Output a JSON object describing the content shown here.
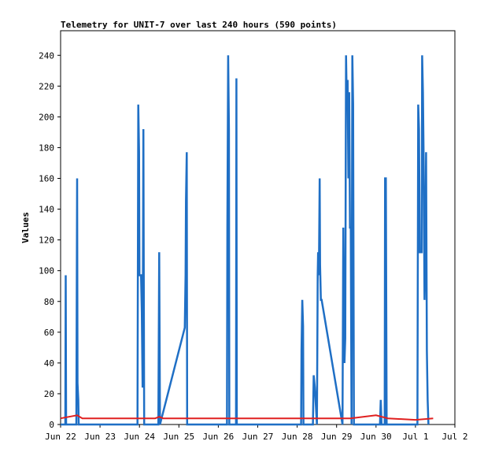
{
  "chart_data": {
    "type": "line",
    "title": "Telemetry for UNIT-7 over last 240 hours (590 points)",
    "xlabel": "",
    "ylabel": "Values",
    "x_ticks": [
      "Jun 22",
      "Jun 23",
      "Jun 24",
      "Jun 25",
      "Jun 26",
      "Jun 27",
      "Jun 28",
      "Jun 29",
      "Jun 30",
      "Jul 1",
      "Jul 2"
    ],
    "xlim": [
      0,
      10
    ],
    "y_ticks": [
      0,
      20,
      40,
      60,
      80,
      100,
      120,
      140,
      160,
      180,
      200,
      220,
      240
    ],
    "ylim": [
      0,
      256
    ],
    "grid": false,
    "series": [
      {
        "color": "#1f6fc5",
        "points": [
          [
            0.0,
            0
          ],
          [
            0.12,
            0
          ],
          [
            0.13,
            97
          ],
          [
            0.14,
            0
          ],
          [
            0.4,
            0
          ],
          [
            0.42,
            160
          ],
          [
            0.43,
            27
          ],
          [
            0.45,
            16
          ],
          [
            0.46,
            0
          ],
          [
            1.95,
            0
          ],
          [
            1.97,
            208
          ],
          [
            1.99,
            177
          ],
          [
            2.0,
            97
          ],
          [
            2.04,
            97
          ],
          [
            2.06,
            73
          ],
          [
            2.08,
            24
          ],
          [
            2.1,
            192
          ],
          [
            2.12,
            0
          ],
          [
            2.48,
            0
          ],
          [
            2.5,
            112
          ],
          [
            2.52,
            0
          ],
          [
            3.15,
            63
          ],
          [
            3.17,
            97
          ],
          [
            3.18,
            145
          ],
          [
            3.2,
            177
          ],
          [
            3.21,
            0
          ],
          [
            4.22,
            0
          ],
          [
            4.23,
            128
          ],
          [
            4.25,
            240
          ],
          [
            4.27,
            192
          ],
          [
            4.28,
            0
          ],
          [
            4.45,
            0
          ],
          [
            4.46,
            225
          ],
          [
            4.47,
            0
          ],
          [
            6.1,
            0
          ],
          [
            6.11,
            48
          ],
          [
            6.13,
            81
          ],
          [
            6.15,
            64
          ],
          [
            6.16,
            0
          ],
          [
            6.4,
            0
          ],
          [
            6.42,
            32
          ],
          [
            6.45,
            24
          ],
          [
            6.5,
            0
          ],
          [
            6.52,
            97
          ],
          [
            6.53,
            112
          ],
          [
            6.55,
            97
          ],
          [
            6.57,
            160
          ],
          [
            6.58,
            104
          ],
          [
            6.6,
            81
          ],
          [
            6.62,
            81
          ],
          [
            7.15,
            0
          ],
          [
            7.17,
            128
          ],
          [
            7.18,
            93
          ],
          [
            7.2,
            40
          ],
          [
            7.22,
            56
          ],
          [
            7.24,
            240
          ],
          [
            7.26,
            208
          ],
          [
            7.28,
            224
          ],
          [
            7.3,
            160
          ],
          [
            7.32,
            216
          ],
          [
            7.34,
            128
          ],
          [
            7.36,
            128
          ],
          [
            7.38,
            0
          ],
          [
            7.4,
            240
          ],
          [
            7.42,
            208
          ],
          [
            7.44,
            0
          ],
          [
            8.1,
            0
          ],
          [
            8.12,
            16
          ],
          [
            8.14,
            0
          ],
          [
            8.22,
            0
          ],
          [
            8.23,
            160
          ],
          [
            8.25,
            160
          ],
          [
            8.27,
            0
          ],
          [
            9.05,
            0
          ],
          [
            9.07,
            208
          ],
          [
            9.09,
            192
          ],
          [
            9.11,
            112
          ],
          [
            9.13,
            112
          ],
          [
            9.16,
            112
          ],
          [
            9.17,
            240
          ],
          [
            9.19,
            216
          ],
          [
            9.21,
            168
          ],
          [
            9.23,
            81
          ],
          [
            9.25,
            112
          ],
          [
            9.27,
            177
          ],
          [
            9.29,
            48
          ],
          [
            9.31,
            16
          ],
          [
            9.33,
            0
          ]
        ]
      },
      {
        "color": "#e02020",
        "points": [
          [
            0.0,
            4
          ],
          [
            0.42,
            6
          ],
          [
            0.55,
            4
          ],
          [
            2.4,
            4
          ],
          [
            2.5,
            5
          ],
          [
            2.6,
            4
          ],
          [
            7.35,
            4
          ],
          [
            8.0,
            6
          ],
          [
            8.3,
            4
          ],
          [
            9.0,
            3
          ],
          [
            9.45,
            4
          ]
        ]
      }
    ]
  }
}
